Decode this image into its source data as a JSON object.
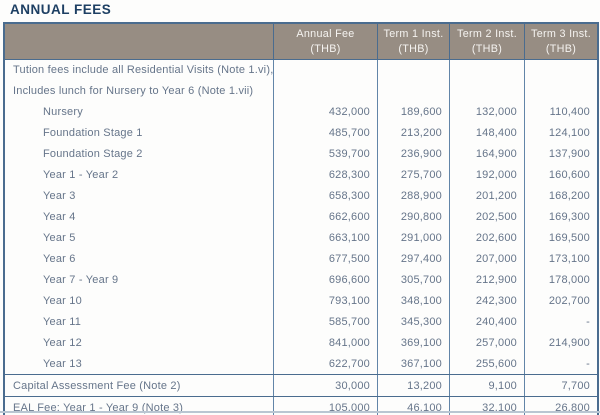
{
  "title": "ANNUAL FEES",
  "colors": {
    "title_navy": "#1d3f63",
    "header_bg": "#978d83",
    "header_text": "#f5f3f0",
    "border_dark": "#4a6c8f",
    "border_light": "#6285a8",
    "body_text": "#66758a"
  },
  "table": {
    "header": [
      {
        "line1": "Annual Fee",
        "line2": "(THB)"
      },
      {
        "line1": "Term 1 Inst.",
        "line2": "(THB)"
      },
      {
        "line1": "Term 2 Inst.",
        "line2": "(THB)"
      },
      {
        "line1": "Term 3 Inst.",
        "line2": "(THB)"
      }
    ],
    "section_note": {
      "line1": "Tution fees include all Residential Visits (Note 1.vi),",
      "line2": "Includes lunch for Nursery to Year 6 (Note 1.vii)"
    },
    "rows": [
      {
        "label": "Nursery",
        "annual": "432,000",
        "term1": "189,600",
        "term2": "132,000",
        "term3": "110,400"
      },
      {
        "label": "Foundation Stage 1",
        "annual": "485,700",
        "term1": "213,200",
        "term2": "148,400",
        "term3": "124,100"
      },
      {
        "label": "Foundation Stage 2",
        "annual": "539,700",
        "term1": "236,900",
        "term2": "164,900",
        "term3": "137,900"
      },
      {
        "label": "Year 1 - Year 2",
        "annual": "628,300",
        "term1": "275,700",
        "term2": "192,000",
        "term3": "160,600"
      },
      {
        "label": "Year 3",
        "annual": "658,300",
        "term1": "288,900",
        "term2": "201,200",
        "term3": "168,200"
      },
      {
        "label": "Year 4",
        "annual": "662,600",
        "term1": "290,800",
        "term2": "202,500",
        "term3": "169,300"
      },
      {
        "label": "Year 5",
        "annual": "663,100",
        "term1": "291,000",
        "term2": "202,600",
        "term3": "169,500"
      },
      {
        "label": "Year 6",
        "annual": "677,500",
        "term1": "297,400",
        "term2": "207,000",
        "term3": "173,100"
      },
      {
        "label": "Year 7 - Year 9",
        "annual": "696,600",
        "term1": "305,700",
        "term2": "212,900",
        "term3": "178,000"
      },
      {
        "label": "Year 10",
        "annual": "793,100",
        "term1": "348,100",
        "term2": "242,300",
        "term3": "202,700"
      },
      {
        "label": "Year 11",
        "annual": "585,700",
        "term1": "345,300",
        "term2": "240,400",
        "term3": "-"
      },
      {
        "label": "Year 12",
        "annual": "841,000",
        "term1": "369,100",
        "term2": "257,000",
        "term3": "214,900"
      },
      {
        "label": "Year 13",
        "annual": "622,700",
        "term1": "367,100",
        "term2": "255,600",
        "term3": "-"
      }
    ],
    "footer_rows": [
      {
        "label": "Capital Assessment Fee (Note 2)",
        "annual": "30,000",
        "term1": "13,200",
        "term2": "9,100",
        "term3": "7,700"
      },
      {
        "label": "EAL Fee: Year 1 - Year 9 (Note 3)",
        "annual": "105,000",
        "term1": "46,100",
        "term2": "32,100",
        "term3": "26,800"
      }
    ]
  }
}
